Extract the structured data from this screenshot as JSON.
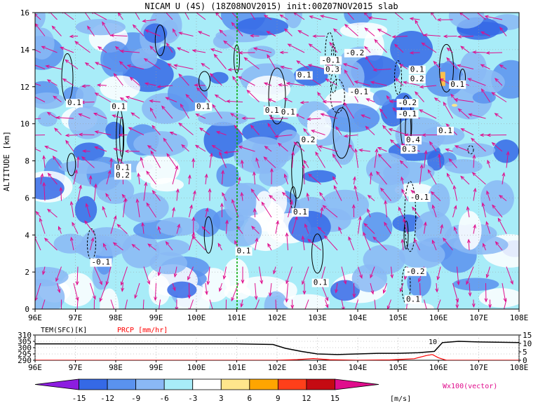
{
  "chart_data": [
    {
      "type": "heatmap",
      "title": "NICAM U (4S) (18Z08NOV2015) init:00Z07NOV2015 slab",
      "xlabel": "",
      "ylabel": "ALTITUDE [km]",
      "x_ticks": [
        "96E",
        "97E",
        "98E",
        "99E",
        "100E",
        "101E",
        "102E",
        "103E",
        "104E",
        "105E",
        "106E",
        "107E",
        "108E"
      ],
      "xlim": [
        96,
        108
      ],
      "ylim": [
        0,
        16
      ],
      "y_ticks": [
        0,
        2,
        4,
        6,
        8,
        10,
        12,
        14,
        16
      ],
      "grid": true,
      "marker_line_lon": 101,
      "contour_labels": [
        {
          "lon": 96.8,
          "z": 11.0,
          "text": "0.1"
        },
        {
          "lon": 97.9,
          "z": 10.8,
          "text": "0.1"
        },
        {
          "lon": 98.0,
          "z": 7.5,
          "text": "0.1"
        },
        {
          "lon": 98.0,
          "z": 7.1,
          "text": "0.2"
        },
        {
          "lon": 100.0,
          "z": 10.8,
          "text": "0.1"
        },
        {
          "lon": 101.7,
          "z": 10.6,
          "text": "0.1"
        },
        {
          "lon": 102.1,
          "z": 10.5,
          "text": "0.1"
        },
        {
          "lon": 102.5,
          "z": 12.5,
          "text": "0.1"
        },
        {
          "lon": 102.6,
          "z": 9.0,
          "text": "0.2"
        },
        {
          "lon": 102.4,
          "z": 5.1,
          "text": "0.1"
        },
        {
          "lon": 103.2,
          "z": 12.8,
          "text": "0.3"
        },
        {
          "lon": 103.1,
          "z": 13.3,
          "text": "-0.1"
        },
        {
          "lon": 103.7,
          "z": 13.7,
          "text": "-0.2"
        },
        {
          "lon": 103.8,
          "z": 11.6,
          "text": "-0.1"
        },
        {
          "lon": 102.9,
          "z": 1.3,
          "text": "0.1"
        },
        {
          "lon": 101.0,
          "z": 3.0,
          "text": "0.1"
        },
        {
          "lon": 97.4,
          "z": 2.4,
          "text": "-0.1"
        },
        {
          "lon": 105.3,
          "z": 12.8,
          "text": "0.1"
        },
        {
          "lon": 105.3,
          "z": 12.3,
          "text": "0.2"
        },
        {
          "lon": 105.0,
          "z": 11.0,
          "text": "-0.2"
        },
        {
          "lon": 105.0,
          "z": 10.4,
          "text": "-0.1"
        },
        {
          "lon": 105.2,
          "z": 9.0,
          "text": "0.4"
        },
        {
          "lon": 105.1,
          "z": 8.5,
          "text": "0.3"
        },
        {
          "lon": 106.3,
          "z": 12.0,
          "text": "0.1"
        },
        {
          "lon": 106.0,
          "z": 9.5,
          "text": "0.1"
        },
        {
          "lon": 105.3,
          "z": 5.9,
          "text": "-0.1"
        },
        {
          "lon": 105.2,
          "z": 1.9,
          "text": "-0.2"
        },
        {
          "lon": 105.2,
          "z": 0.4,
          "text": "0.1"
        }
      ]
    },
    {
      "type": "line",
      "legend": [
        "TEM(SFC)[K]",
        "PRCP [mm/hr]"
      ],
      "x_ticks": [
        "96E",
        "97E",
        "98E",
        "99E",
        "100E",
        "101E",
        "102E",
        "103E",
        "104E",
        "105E",
        "106E",
        "107E",
        "108E"
      ],
      "xlim": [
        96,
        108
      ],
      "left_axis": {
        "ticks": [
          310,
          305,
          300,
          295,
          290
        ],
        "range": [
          290,
          310
        ]
      },
      "right_axis": {
        "ticks": [
          15,
          10,
          5,
          0
        ],
        "range": [
          0,
          15
        ]
      },
      "series": [
        {
          "name": "TEM(SFC)[K]",
          "color": "#000000",
          "x": [
            96,
            97,
            98,
            99,
            100,
            101,
            101.9,
            102.2,
            102.6,
            103.0,
            103.5,
            104.0,
            104.5,
            105.0,
            105.5,
            105.9,
            106.1,
            106.5,
            107,
            108
          ],
          "y": [
            303,
            303,
            303,
            303,
            303,
            303,
            302.5,
            299.5,
            297,
            295,
            294.5,
            295,
            295.5,
            295.5,
            296,
            297,
            304,
            305,
            304.5,
            304
          ]
        },
        {
          "name": "PRCP [mm/hr]",
          "color": "#ff0000",
          "x": [
            96,
            102,
            102.5,
            102.9,
            103.3,
            104,
            104.8,
            105.4,
            105.7,
            105.85,
            106,
            106.2,
            108
          ],
          "y": [
            0,
            0,
            0.4,
            1.0,
            0.3,
            0,
            0.2,
            0.9,
            2.8,
            3.4,
            1.5,
            0,
            0
          ]
        },
        {
          "name": "",
          "color": "#000000",
          "x": [],
          "y": []
        }
      ],
      "annotation": "10"
    }
  ],
  "colorbar": {
    "ticks": [
      "-15",
      "-12",
      "-9",
      "-6",
      "-3",
      "3",
      "6",
      "9",
      "12",
      "15"
    ],
    "unit": "[m/s]",
    "colors": [
      "#8c1de0",
      "#3569e6",
      "#5a92ef",
      "#8ab8f5",
      "#a8ecf8",
      "#ffffff",
      "#ffe68c",
      "#ffa500",
      "#ff3f1a",
      "#c50a12",
      "#e00d8c"
    ],
    "vector_label": "Wx100(vector)"
  },
  "colors": {
    "vector": "#e00d8c",
    "marker_line": "#00aa00",
    "v_light": "#a8ecf8",
    "v_mid": "#8ab8f5",
    "v_dark": "#5a92ef",
    "v_darker": "#3569e6"
  }
}
